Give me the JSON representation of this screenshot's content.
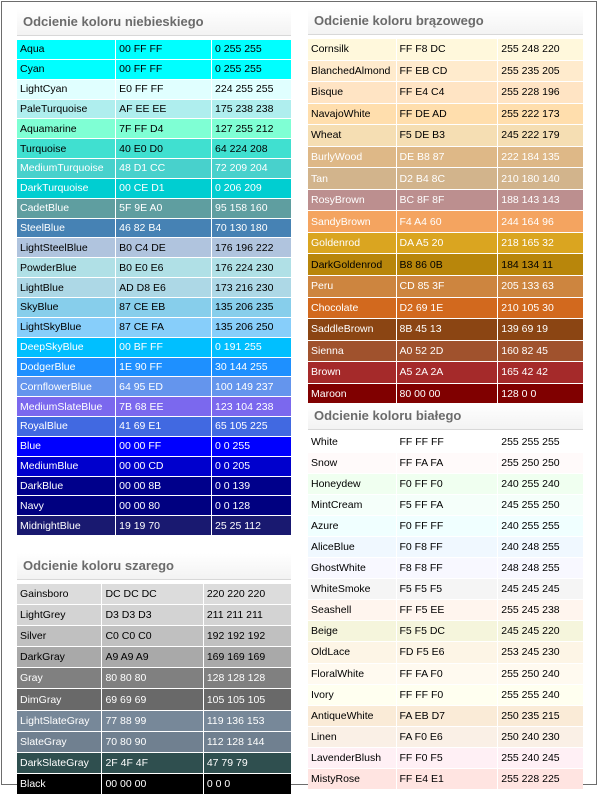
{
  "panels": [
    {
      "id": "blue",
      "title": "Odcienie koloru niebieskiego",
      "rows": [
        {
          "name": "Aqua",
          "hex": "00 FF FF",
          "rgb": "0 255 255",
          "bg": "#00FFFF",
          "fg": "#000000"
        },
        {
          "name": "Cyan",
          "hex": "00 FF FF",
          "rgb": "0 255 255",
          "bg": "#00FFFF",
          "fg": "#000000"
        },
        {
          "name": "LightCyan",
          "hex": "E0 FF FF",
          "rgb": "224 255 255",
          "bg": "#E0FFFF",
          "fg": "#000000"
        },
        {
          "name": "PaleTurquoise",
          "hex": "AF EE EE",
          "rgb": "175 238 238",
          "bg": "#AFEEEE",
          "fg": "#000000"
        },
        {
          "name": "Aquamarine",
          "hex": "7F FF D4",
          "rgb": "127 255 212",
          "bg": "#7FFFD4",
          "fg": "#000000"
        },
        {
          "name": "Turquoise",
          "hex": "40 E0 D0",
          "rgb": "64 224 208",
          "bg": "#40E0D0",
          "fg": "#000000"
        },
        {
          "name": "MediumTurquoise",
          "hex": "48 D1 CC",
          "rgb": "72 209 204",
          "bg": "#48D1CC",
          "fg": "#ffffff"
        },
        {
          "name": "DarkTurquoise",
          "hex": "00 CE D1",
          "rgb": "0 206 209",
          "bg": "#00CED1",
          "fg": "#ffffff"
        },
        {
          "name": "CadetBlue",
          "hex": "5F 9E A0",
          "rgb": "95 158 160",
          "bg": "#5F9EA0",
          "fg": "#ffffff"
        },
        {
          "name": "SteelBlue",
          "hex": "46 82 B4",
          "rgb": "70 130 180",
          "bg": "#4682B4",
          "fg": "#ffffff"
        },
        {
          "name": "LightSteelBlue",
          "hex": "B0 C4 DE",
          "rgb": "176 196 222",
          "bg": "#B0C4DE",
          "fg": "#000000"
        },
        {
          "name": "PowderBlue",
          "hex": "B0 E0 E6",
          "rgb": "176 224 230",
          "bg": "#B0E0E6",
          "fg": "#000000"
        },
        {
          "name": "LightBlue",
          "hex": "AD D8 E6",
          "rgb": "173 216 230",
          "bg": "#ADD8E6",
          "fg": "#000000"
        },
        {
          "name": "SkyBlue",
          "hex": "87 CE EB",
          "rgb": "135 206 235",
          "bg": "#87CEEB",
          "fg": "#000000"
        },
        {
          "name": "LightSkyBlue",
          "hex": "87 CE FA",
          "rgb": "135 206 250",
          "bg": "#87CEFA",
          "fg": "#000000"
        },
        {
          "name": "DeepSkyBlue",
          "hex": "00 BF FF",
          "rgb": "0 191 255",
          "bg": "#00BFFF",
          "fg": "#ffffff"
        },
        {
          "name": "DodgerBlue",
          "hex": "1E 90 FF",
          "rgb": "30 144 255",
          "bg": "#1E90FF",
          "fg": "#ffffff"
        },
        {
          "name": "CornflowerBlue",
          "hex": "64 95 ED",
          "rgb": "100 149 237",
          "bg": "#6495ED",
          "fg": "#ffffff"
        },
        {
          "name": "MediumSlateBlue",
          "hex": "7B 68 EE",
          "rgb": "123 104 238",
          "bg": "#7B68EE",
          "fg": "#ffffff"
        },
        {
          "name": "RoyalBlue",
          "hex": "41 69 E1",
          "rgb": "65 105 225",
          "bg": "#4169E1",
          "fg": "#ffffff"
        },
        {
          "name": "Blue",
          "hex": "00 00 FF",
          "rgb": "0 0 255",
          "bg": "#0000FF",
          "fg": "#ffffff"
        },
        {
          "name": "MediumBlue",
          "hex": "00 00 CD",
          "rgb": "0 0 205",
          "bg": "#0000CD",
          "fg": "#ffffff"
        },
        {
          "name": "DarkBlue",
          "hex": "00 00 8B",
          "rgb": "0 0 139",
          "bg": "#00008B",
          "fg": "#ffffff"
        },
        {
          "name": "Navy",
          "hex": "00 00 80",
          "rgb": "0 0 128",
          "bg": "#000080",
          "fg": "#ffffff"
        },
        {
          "name": "MidnightBlue",
          "hex": "19 19 70",
          "rgb": "25 25 112",
          "bg": "#191970",
          "fg": "#ffffff"
        }
      ]
    },
    {
      "id": "gray",
      "title": "Odcienie koloru szarego",
      "rows": [
        {
          "name": "Gainsboro",
          "hex": "DC DC DC",
          "rgb": "220 220 220",
          "bg": "#DCDCDC",
          "fg": "#000000"
        },
        {
          "name": "LightGrey",
          "hex": "D3 D3 D3",
          "rgb": "211 211 211",
          "bg": "#D3D3D3",
          "fg": "#000000"
        },
        {
          "name": "Silver",
          "hex": "C0 C0 C0",
          "rgb": "192 192 192",
          "bg": "#C0C0C0",
          "fg": "#000000"
        },
        {
          "name": "DarkGray",
          "hex": "A9 A9 A9",
          "rgb": "169 169 169",
          "bg": "#A9A9A9",
          "fg": "#000000"
        },
        {
          "name": "Gray",
          "hex": "80 80 80",
          "rgb": "128 128 128",
          "bg": "#808080",
          "fg": "#ffffff"
        },
        {
          "name": "DimGray",
          "hex": "69 69 69",
          "rgb": "105 105 105",
          "bg": "#696969",
          "fg": "#ffffff"
        },
        {
          "name": "LightSlateGray",
          "hex": "77 88 99",
          "rgb": "119 136 153",
          "bg": "#778899",
          "fg": "#ffffff"
        },
        {
          "name": "SlateGray",
          "hex": "70 80 90",
          "rgb": "112 128 144",
          "bg": "#708090",
          "fg": "#ffffff"
        },
        {
          "name": "DarkSlateGray",
          "hex": "2F 4F 4F",
          "rgb": "47 79 79",
          "bg": "#2F4F4F",
          "fg": "#ffffff"
        },
        {
          "name": "Black",
          "hex": "00 00 00",
          "rgb": "0 0 0",
          "bg": "#000000",
          "fg": "#ffffff"
        }
      ]
    },
    {
      "id": "brown",
      "title": "Odcienie koloru brązowego",
      "rows": [
        {
          "name": "Cornsilk",
          "hex": "FF F8 DC",
          "rgb": "255 248 220",
          "bg": "#FFF8DC",
          "fg": "#000000"
        },
        {
          "name": "BlanchedAlmond",
          "hex": "FF EB CD",
          "rgb": "255 235 205",
          "bg": "#FFEBCD",
          "fg": "#000000"
        },
        {
          "name": "Bisque",
          "hex": "FF E4 C4",
          "rgb": "255 228 196",
          "bg": "#FFE4C4",
          "fg": "#000000"
        },
        {
          "name": "NavajoWhite",
          "hex": "FF DE AD",
          "rgb": "255 222 173",
          "bg": "#FFDEAD",
          "fg": "#000000"
        },
        {
          "name": "Wheat",
          "hex": "F5 DE B3",
          "rgb": "245 222 179",
          "bg": "#F5DEB3",
          "fg": "#000000"
        },
        {
          "name": "BurlyWood",
          "hex": "DE B8 87",
          "rgb": "222 184 135",
          "bg": "#DEB887",
          "fg": "#ffffff"
        },
        {
          "name": "Tan",
          "hex": "D2 B4 8C",
          "rgb": "210 180 140",
          "bg": "#D2B48C",
          "fg": "#ffffff"
        },
        {
          "name": "RosyBrown",
          "hex": "BC 8F 8F",
          "rgb": "188 143 143",
          "bg": "#BC8F8F",
          "fg": "#ffffff"
        },
        {
          "name": "SandyBrown",
          "hex": "F4 A4 60",
          "rgb": "244 164 96",
          "bg": "#F4A460",
          "fg": "#ffffff"
        },
        {
          "name": "Goldenrod",
          "hex": "DA A5 20",
          "rgb": "218 165 32",
          "bg": "#DAA520",
          "fg": "#ffffff"
        },
        {
          "name": "DarkGoldenrod",
          "hex": "B8 86 0B",
          "rgb": "184 134 11",
          "bg": "#B8860B",
          "fg": "#000000"
        },
        {
          "name": "Peru",
          "hex": "CD 85 3F",
          "rgb": "205 133 63",
          "bg": "#CD853F",
          "fg": "#ffffff"
        },
        {
          "name": "Chocolate",
          "hex": "D2 69 1E",
          "rgb": "210 105 30",
          "bg": "#D2691E",
          "fg": "#ffffff"
        },
        {
          "name": "SaddleBrown",
          "hex": "8B 45 13",
          "rgb": "139 69 19",
          "bg": "#8B4513",
          "fg": "#ffffff"
        },
        {
          "name": "Sienna",
          "hex": "A0 52 2D",
          "rgb": "160 82 45",
          "bg": "#A0522D",
          "fg": "#ffffff"
        },
        {
          "name": "Brown",
          "hex": "A5 2A 2A",
          "rgb": "165 42 42",
          "bg": "#A52A2A",
          "fg": "#ffffff"
        },
        {
          "name": "Maroon",
          "hex": "80 00 00",
          "rgb": "128 0 0",
          "bg": "#800000",
          "fg": "#ffffff"
        }
      ]
    },
    {
      "id": "white",
      "title": "Odcienie koloru białego",
      "rows": [
        {
          "name": "White",
          "hex": "FF FF FF",
          "rgb": "255 255 255",
          "bg": "#FFFFFF",
          "fg": "#000000"
        },
        {
          "name": "Snow",
          "hex": "FF FA FA",
          "rgb": "255 250 250",
          "bg": "#FFFAFA",
          "fg": "#000000"
        },
        {
          "name": "Honeydew",
          "hex": "F0 FF F0",
          "rgb": "240 255 240",
          "bg": "#F0FFF0",
          "fg": "#000000"
        },
        {
          "name": "MintCream",
          "hex": "F5 FF FA",
          "rgb": "245 255 250",
          "bg": "#F5FFFA",
          "fg": "#000000"
        },
        {
          "name": "Azure",
          "hex": "F0 FF FF",
          "rgb": "240 255 255",
          "bg": "#F0FFFF",
          "fg": "#000000"
        },
        {
          "name": "AliceBlue",
          "hex": "F0 F8 FF",
          "rgb": "240 248 255",
          "bg": "#F0F8FF",
          "fg": "#000000"
        },
        {
          "name": "GhostWhite",
          "hex": "F8 F8 FF",
          "rgb": "248 248 255",
          "bg": "#F8F8FF",
          "fg": "#000000"
        },
        {
          "name": "WhiteSmoke",
          "hex": "F5 F5 F5",
          "rgb": "245 245 245",
          "bg": "#F5F5F5",
          "fg": "#000000"
        },
        {
          "name": "Seashell",
          "hex": "FF F5 EE",
          "rgb": "255 245 238",
          "bg": "#FFF5EE",
          "fg": "#000000"
        },
        {
          "name": "Beige",
          "hex": "F5 F5 DC",
          "rgb": "245 245 220",
          "bg": "#F5F5DC",
          "fg": "#000000"
        },
        {
          "name": "OldLace",
          "hex": "FD F5 E6",
          "rgb": "253 245 230",
          "bg": "#FDF5E6",
          "fg": "#000000"
        },
        {
          "name": "FloralWhite",
          "hex": "FF FA F0",
          "rgb": "255 250 240",
          "bg": "#FFFAF0",
          "fg": "#000000"
        },
        {
          "name": "Ivory",
          "hex": "FF FF F0",
          "rgb": "255 255 240",
          "bg": "#FFFFF0",
          "fg": "#000000"
        },
        {
          "name": "AntiqueWhite",
          "hex": "FA EB D7",
          "rgb": "250 235 215",
          "bg": "#FAEBD7",
          "fg": "#000000"
        },
        {
          "name": "Linen",
          "hex": "FA F0 E6",
          "rgb": "250 240 230",
          "bg": "#FAF0E6",
          "fg": "#000000"
        },
        {
          "name": "LavenderBlush",
          "hex": "FF F0 F5",
          "rgb": "255 240 245",
          "bg": "#FFF0F5",
          "fg": "#000000"
        },
        {
          "name": "MistyRose",
          "hex": "FF E4 E1",
          "rgb": "255 228 225",
          "bg": "#FFE4E1",
          "fg": "#000000"
        }
      ]
    }
  ]
}
